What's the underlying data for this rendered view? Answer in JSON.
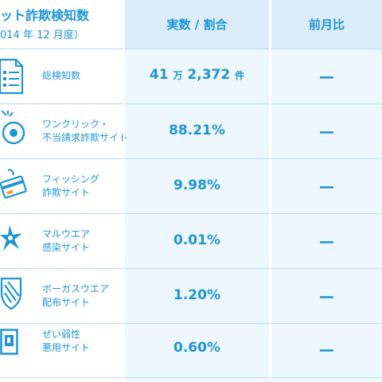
{
  "header": {
    "title": "ット詐欺検知数",
    "subtitle": "014 年 12 月度）",
    "col_value": "実数 / 割合",
    "col_compare": "前月比"
  },
  "rows": [
    {
      "label1": "総検知数",
      "label2": "",
      "value_a": "41",
      "unit_a": "万",
      "value_b": "2,372",
      "unit_b": "件",
      "compare": "ー",
      "icon": "document-list-icon"
    },
    {
      "label1": "ワンクリック・",
      "label2": "不当請求詐欺サイト",
      "value": "88.21%",
      "compare": "ー",
      "icon": "pointer-click-icon"
    },
    {
      "label1": "フィッシング",
      "label2": "詐欺サイト",
      "value": "9.98%",
      "compare": "ー",
      "icon": "fishing-card-icon"
    },
    {
      "label1": "マルウエア",
      "label2": "感染サイト",
      "value": "0.01%",
      "compare": "ー",
      "icon": "virus-icon"
    },
    {
      "label1": "ボーガスウエア",
      "label2": "配布サイト",
      "value": "1.20%",
      "compare": "ー",
      "icon": "fake-shield-icon"
    },
    {
      "label1": "ぜい弱性",
      "label2": "悪用サイト",
      "value": "0.60%",
      "compare": "ー",
      "icon": "vulnerable-window-icon"
    }
  ],
  "colors": {
    "accent": "#1f95d2",
    "column_bg": "#eef7fd",
    "header_bg": "#dcedf9",
    "divider": "#b8dcf1"
  }
}
